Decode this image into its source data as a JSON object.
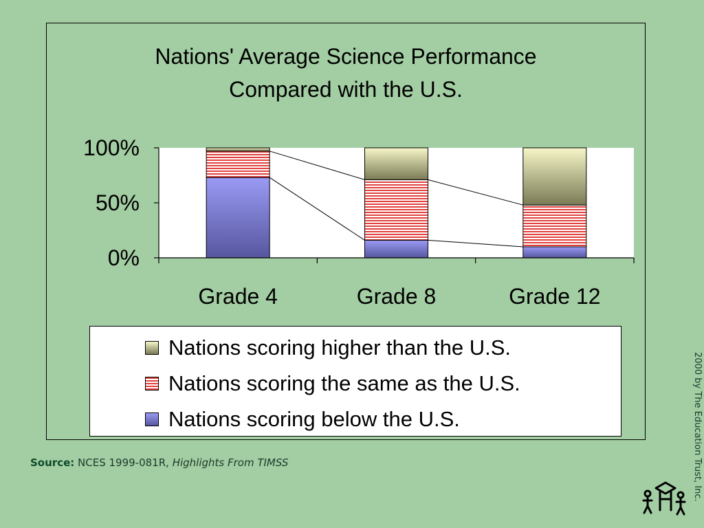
{
  "chart_data": {
    "type": "bar",
    "stacked": true,
    "percent": true,
    "title_lines": [
      "Nations' Average Science Performance",
      "Compared with the U.S."
    ],
    "categories": [
      "Grade 4",
      "Grade 8",
      "Grade 12"
    ],
    "ylim": [
      0,
      100
    ],
    "yticks": [
      {
        "value": 0,
        "label": "0%"
      },
      {
        "value": 50,
        "label": "50%"
      },
      {
        "value": 100,
        "label": "100%"
      }
    ],
    "series": [
      {
        "name": "Nations scoring below the U.S.",
        "values": [
          73,
          16,
          10
        ],
        "color": "#7f7fdf"
      },
      {
        "name": "Nations scoring the same as the U.S.",
        "values": [
          24,
          55,
          38
        ],
        "color": "#e0403c"
      },
      {
        "name": "Nations scoring higher than the U.S.",
        "values": [
          3,
          29,
          52
        ],
        "color": "#d8d8a0"
      }
    ],
    "legend_order": [
      2,
      1,
      0
    ],
    "legend_position": "bottom",
    "series_lines": true,
    "grid": false
  },
  "source": {
    "label": "Source:",
    "text": "NCES 1999-081R,",
    "title": "Highlights From TIMSS"
  },
  "credit": "2000 by The Education Trust, Inc."
}
